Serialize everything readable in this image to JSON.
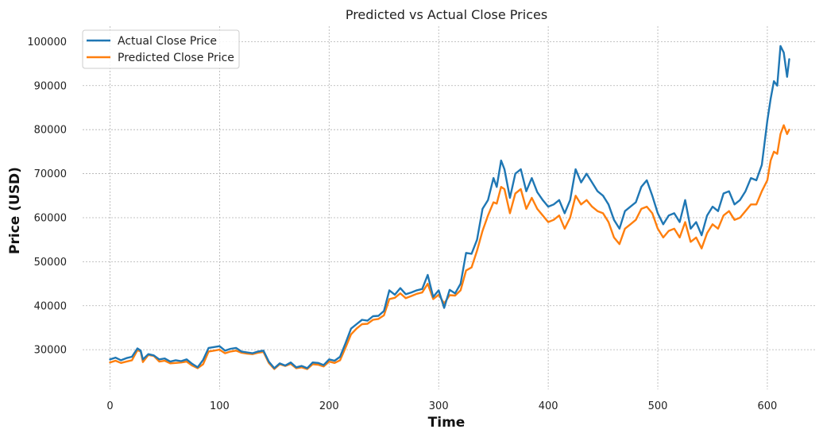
{
  "chart_data": {
    "type": "line",
    "title": "Predicted vs Actual Close Prices",
    "xlabel": "Time",
    "ylabel": "Price (USD)",
    "xlim": [
      -25,
      645
    ],
    "ylim": [
      21000,
      103500
    ],
    "xticks": [
      0,
      100,
      200,
      300,
      400,
      500,
      600
    ],
    "xtick_labels": [
      "0",
      "100",
      "200",
      "300",
      "400",
      "500",
      "600"
    ],
    "yticks": [
      30000,
      40000,
      50000,
      60000,
      70000,
      80000,
      90000,
      100000
    ],
    "ytick_labels": [
      "30000",
      "40000",
      "50000",
      "60000",
      "70000",
      "80000",
      "90000",
      "100000"
    ],
    "grid": true,
    "legend_position": "top-left",
    "series": [
      {
        "name": "Actual Close Price",
        "color": "#1f77b4",
        "x": [
          0,
          5,
          10,
          15,
          20,
          25,
          28,
          30,
          35,
          40,
          45,
          50,
          55,
          60,
          65,
          70,
          75,
          80,
          85,
          90,
          95,
          100,
          105,
          110,
          115,
          120,
          125,
          130,
          135,
          140,
          145,
          150,
          155,
          160,
          165,
          170,
          175,
          180,
          185,
          190,
          195,
          200,
          205,
          210,
          215,
          220,
          225,
          230,
          235,
          240,
          245,
          250,
          255,
          260,
          265,
          270,
          275,
          280,
          285,
          290,
          295,
          300,
          305,
          310,
          315,
          320,
          325,
          330,
          335,
          340,
          345,
          350,
          353,
          357,
          360,
          365,
          370,
          375,
          380,
          385,
          390,
          395,
          400,
          405,
          410,
          415,
          420,
          425,
          430,
          435,
          440,
          445,
          450,
          455,
          460,
          465,
          470,
          475,
          480,
          485,
          490,
          495,
          500,
          505,
          510,
          515,
          520,
          525,
          530,
          535,
          540,
          545,
          550,
          555,
          560,
          565,
          570,
          575,
          580,
          585,
          590,
          595,
          600,
          603,
          606,
          609,
          612,
          615,
          618,
          620
        ],
        "values": [
          27800,
          28200,
          27600,
          28100,
          28400,
          30300,
          29800,
          27800,
          29000,
          28700,
          27800,
          28000,
          27300,
          27600,
          27400,
          27800,
          26800,
          26000,
          27700,
          30400,
          30600,
          30800,
          29800,
          30200,
          30400,
          29600,
          29400,
          29200,
          29600,
          29800,
          27300,
          25800,
          26900,
          26400,
          27100,
          26000,
          26300,
          25800,
          27100,
          27000,
          26500,
          27800,
          27500,
          28400,
          31500,
          34800,
          35800,
          36800,
          36600,
          37600,
          37700,
          38800,
          43500,
          42500,
          44000,
          42600,
          43000,
          43500,
          43800,
          47000,
          42000,
          43500,
          39500,
          43600,
          42800,
          45000,
          52000,
          51800,
          55000,
          62000,
          64000,
          69000,
          67000,
          73000,
          71000,
          64500,
          70000,
          71000,
          66000,
          69000,
          65800,
          64000,
          62500,
          63000,
          64000,
          61000,
          64000,
          71000,
          68000,
          70000,
          68000,
          66000,
          65000,
          63000,
          59500,
          57500,
          61500,
          62500,
          63500,
          67000,
          68500,
          65000,
          61000,
          58500,
          60500,
          61000,
          59000,
          64000,
          57500,
          59000,
          56000,
          60500,
          62500,
          61500,
          65500,
          66000,
          63000,
          64000,
          66000,
          69000,
          68500,
          72000,
          82000,
          87000,
          91000,
          90000,
          99000,
          97500,
          92000,
          96000
        ]
      },
      {
        "name": "Predicted Close Price",
        "color": "#ff7f0e",
        "x": [
          0,
          5,
          10,
          15,
          20,
          25,
          28,
          30,
          35,
          40,
          45,
          50,
          55,
          60,
          65,
          70,
          75,
          80,
          85,
          90,
          95,
          100,
          105,
          110,
          115,
          120,
          125,
          130,
          135,
          140,
          145,
          150,
          155,
          160,
          165,
          170,
          175,
          180,
          185,
          190,
          195,
          200,
          205,
          210,
          215,
          220,
          225,
          230,
          235,
          240,
          245,
          250,
          255,
          260,
          265,
          270,
          275,
          280,
          285,
          290,
          295,
          300,
          305,
          310,
          315,
          320,
          325,
          330,
          335,
          340,
          345,
          350,
          353,
          357,
          360,
          365,
          370,
          375,
          380,
          385,
          390,
          395,
          400,
          405,
          410,
          415,
          420,
          425,
          430,
          435,
          440,
          445,
          450,
          455,
          460,
          465,
          470,
          475,
          480,
          485,
          490,
          495,
          500,
          505,
          510,
          515,
          520,
          525,
          530,
          535,
          540,
          545,
          550,
          555,
          560,
          565,
          570,
          575,
          580,
          585,
          590,
          595,
          600,
          603,
          606,
          609,
          612,
          615,
          618,
          620
        ],
        "values": [
          27100,
          27500,
          27000,
          27300,
          27600,
          29900,
          29600,
          27200,
          28800,
          28600,
          27300,
          27500,
          26900,
          27000,
          27100,
          27300,
          26400,
          25800,
          26700,
          29600,
          29800,
          30000,
          29200,
          29600,
          29800,
          29300,
          29100,
          29000,
          29300,
          29500,
          27000,
          25600,
          26700,
          26300,
          26800,
          25800,
          26000,
          25600,
          26700,
          26600,
          26200,
          27300,
          27000,
          27600,
          30500,
          33500,
          34800,
          35800,
          35900,
          36800,
          37000,
          37800,
          41500,
          41800,
          42800,
          41700,
          42200,
          42700,
          43000,
          45000,
          41500,
          42500,
          40500,
          42400,
          42300,
          43500,
          48000,
          48700,
          52500,
          57000,
          60500,
          63500,
          63200,
          67000,
          66500,
          61000,
          65500,
          66500,
          62000,
          64500,
          62000,
          60500,
          59000,
          59500,
          60500,
          57500,
          60000,
          65000,
          63000,
          64000,
          62500,
          61500,
          61000,
          59000,
          55500,
          54000,
          57500,
          58500,
          59500,
          62000,
          62500,
          61000,
          57500,
          55500,
          57000,
          57500,
          55500,
          59000,
          54500,
          55500,
          53000,
          56500,
          58500,
          57500,
          60500,
          61500,
          59500,
          60000,
          61500,
          63000,
          63000,
          66000,
          68500,
          73000,
          75000,
          74500,
          79000,
          81000,
          79000,
          80000
        ]
      }
    ]
  }
}
